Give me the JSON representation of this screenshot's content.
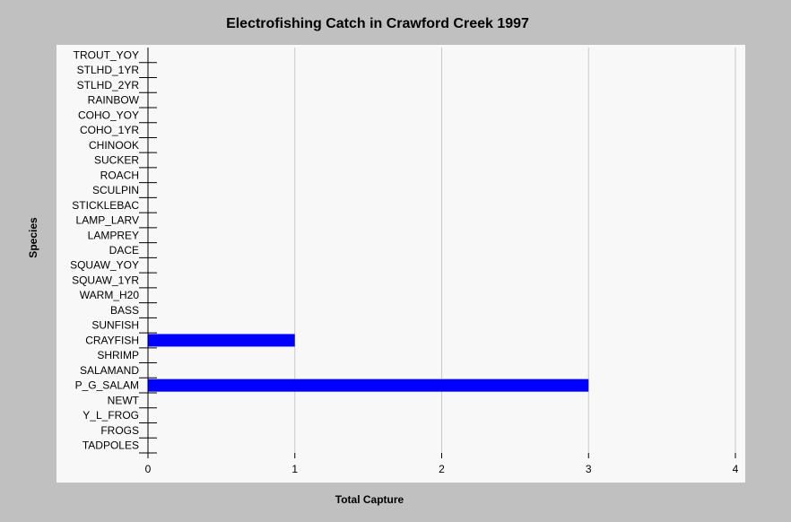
{
  "chart_data": {
    "type": "bar",
    "orientation": "horizontal",
    "title": "Electrofishing Catch in Crawford Creek 1997",
    "xlabel": "Total Capture",
    "ylabel": "Species",
    "xlim": [
      0,
      4
    ],
    "xticks": [
      "0",
      "1",
      "2",
      "3",
      "4"
    ],
    "grid": true,
    "bar_color": "#0000ff",
    "categories": [
      "TROUT_YOY",
      "STLHD_1YR",
      "STLHD_2YR",
      "RAINBOW",
      "COHO_YOY",
      "COHO_1YR",
      "CHINOOK",
      "SUCKER",
      "ROACH",
      "SCULPIN",
      "STICKLEBAC",
      "LAMP_LARV",
      "LAMPREY",
      "DACE",
      "SQUAW_YOY",
      "SQUAW_1YR",
      "WARM_H20",
      "BASS",
      "SUNFISH",
      "CRAYFISH",
      "SHRIMP",
      "SALAMAND",
      "P_G_SALAM",
      "NEWT",
      "Y_L_FROG",
      "FROGS",
      "TADPOLES"
    ],
    "values": [
      0,
      0,
      0,
      0,
      0,
      0,
      0,
      0,
      0,
      0,
      0,
      0,
      0,
      0,
      0,
      0,
      0,
      0,
      0,
      1,
      0,
      0,
      3,
      0,
      0,
      0,
      0
    ]
  }
}
